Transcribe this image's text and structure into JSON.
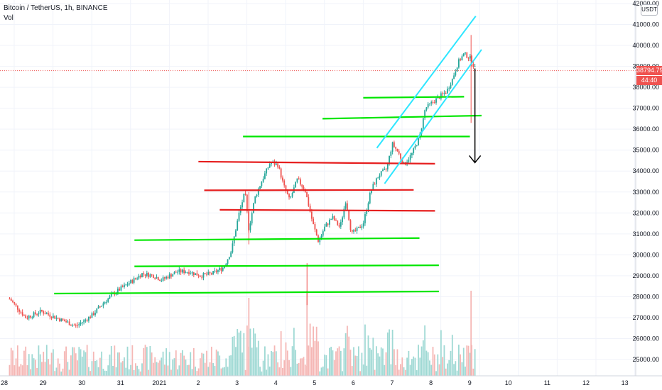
{
  "header": {
    "symbol": "Bitcoin / TetherUS, 1h, BINANCE",
    "indicator": "Vol"
  },
  "currency_button": "USDT",
  "current_price": {
    "label": "38794.79",
    "countdown": "44:40",
    "color": "#ef5350"
  },
  "colors": {
    "up": "#26a69a",
    "down": "#ef5350",
    "support": "#00e600",
    "resistance": "#e61e1e",
    "channel": "#2ee6ff",
    "arrow": "#000000",
    "vol_up": "#9fd9d4",
    "vol_down": "#f5b7b5"
  },
  "chart_data": {
    "type": "candlestick",
    "y_axis": {
      "ylim": [
        24600,
        42000
      ],
      "ticks": [
        "25000.00",
        "26000.00",
        "27000.00",
        "28000.00",
        "29000.00",
        "30000.00",
        "31000.00",
        "32000.00",
        "33000.00",
        "34000.00",
        "35000.00",
        "36000.00",
        "37000.00",
        "38000.00",
        "39000.00",
        "40000.00",
        "41000.00",
        "42000.00"
      ],
      "tick_values": [
        25000,
        26000,
        27000,
        28000,
        29000,
        30000,
        31000,
        32000,
        33000,
        34000,
        35000,
        36000,
        37000,
        38000,
        39000,
        40000,
        41000,
        42000
      ]
    },
    "x_axis": {
      "xlim": [
        27.7,
        13.0
      ],
      "ticks": [
        {
          "label": "28",
          "t": 0
        },
        {
          "label": "29",
          "t": 1
        },
        {
          "label": "30",
          "t": 2
        },
        {
          "label": "31",
          "t": 3
        },
        {
          "label": "2021",
          "t": 4
        },
        {
          "label": "2",
          "t": 5
        },
        {
          "label": "3",
          "t": 6
        },
        {
          "label": "4",
          "t": 7
        },
        {
          "label": "5",
          "t": 8
        },
        {
          "label": "6",
          "t": 9
        },
        {
          "label": "7",
          "t": 10
        },
        {
          "label": "8",
          "t": 11
        },
        {
          "label": "9",
          "t": 12
        },
        {
          "label": "10",
          "t": 13
        },
        {
          "label": "11",
          "t": 14
        },
        {
          "label": "12",
          "t": 15
        },
        {
          "label": "13",
          "t": 16
        }
      ]
    },
    "price_path": [
      [
        -0.12,
        27900
      ],
      [
        0.3,
        27000
      ],
      [
        0.7,
        27300
      ],
      [
        1.2,
        26900
      ],
      [
        1.6,
        26600
      ],
      [
        2.0,
        27100
      ],
      [
        2.3,
        27700
      ],
      [
        2.6,
        28200
      ],
      [
        3.0,
        28700
      ],
      [
        3.3,
        29100
      ],
      [
        3.6,
        29000
      ],
      [
        3.8,
        28800
      ],
      [
        4.2,
        29200
      ],
      [
        4.5,
        29200
      ],
      [
        4.8,
        29000
      ],
      [
        5.1,
        29100
      ],
      [
        5.4,
        29400
      ],
      [
        5.6,
        30200
      ],
      [
        5.8,
        32000
      ],
      [
        5.95,
        33000
      ],
      [
        6.05,
        31200
      ],
      [
        6.2,
        32700
      ],
      [
        6.4,
        33600
      ],
      [
        6.6,
        34400
      ],
      [
        6.8,
        34300
      ],
      [
        6.95,
        33300
      ],
      [
        7.1,
        32600
      ],
      [
        7.3,
        33600
      ],
      [
        7.5,
        33100
      ],
      [
        7.7,
        31500
      ],
      [
        7.85,
        30600
      ],
      [
        8.0,
        31300
      ],
      [
        8.2,
        31800
      ],
      [
        8.4,
        31300
      ],
      [
        8.55,
        32600
      ],
      [
        8.7,
        31000
      ],
      [
        8.85,
        31200
      ],
      [
        9.0,
        31500
      ],
      [
        9.2,
        33100
      ],
      [
        9.4,
        33800
      ],
      [
        9.6,
        34100
      ],
      [
        9.75,
        35300
      ],
      [
        9.9,
        34900
      ],
      [
        10.05,
        34300
      ],
      [
        10.25,
        34800
      ],
      [
        10.45,
        35600
      ],
      [
        10.6,
        37000
      ],
      [
        10.8,
        37300
      ],
      [
        11.0,
        37600
      ],
      [
        11.15,
        37800
      ],
      [
        11.3,
        38400
      ],
      [
        11.45,
        39200
      ],
      [
        11.6,
        39600
      ],
      [
        11.75,
        39400
      ],
      [
        11.88,
        38900
      ]
    ],
    "volume_scale": "relative",
    "horizontal_levels": [
      {
        "kind": "resistance",
        "t1": 4.75,
        "t2": 10.85,
        "y1": 34450,
        "y2": 34350
      },
      {
        "kind": "resistance",
        "t1": 4.9,
        "t2": 10.3,
        "y1": 33080,
        "y2": 33100
      },
      {
        "kind": "resistance",
        "t1": 5.3,
        "t2": 10.85,
        "y1": 32150,
        "y2": 32100
      },
      {
        "kind": "support",
        "t1": 9.0,
        "t2": 11.6,
        "y1": 37500,
        "y2": 37550
      },
      {
        "kind": "support",
        "t1": 7.95,
        "t2": 12.05,
        "y1": 36500,
        "y2": 36650
      },
      {
        "kind": "support",
        "t1": 5.9,
        "t2": 11.75,
        "y1": 35650,
        "y2": 35650
      },
      {
        "kind": "support",
        "t1": 3.1,
        "t2": 10.45,
        "y1": 30700,
        "y2": 30800
      },
      {
        "kind": "support",
        "t1": 3.1,
        "t2": 10.95,
        "y1": 29450,
        "y2": 29500
      },
      {
        "kind": "support",
        "t1": 1.03,
        "t2": 10.95,
        "y1": 28150,
        "y2": 28250
      }
    ],
    "channel": [
      {
        "t1": 9.35,
        "y1": 35100,
        "t2": 11.9,
        "y2": 41400
      },
      {
        "t1": 9.55,
        "y1": 33400,
        "t2": 12.05,
        "y2": 39800
      }
    ],
    "arrow": {
      "t": 11.88,
      "y_from": 38900,
      "y_to": 34400
    }
  }
}
